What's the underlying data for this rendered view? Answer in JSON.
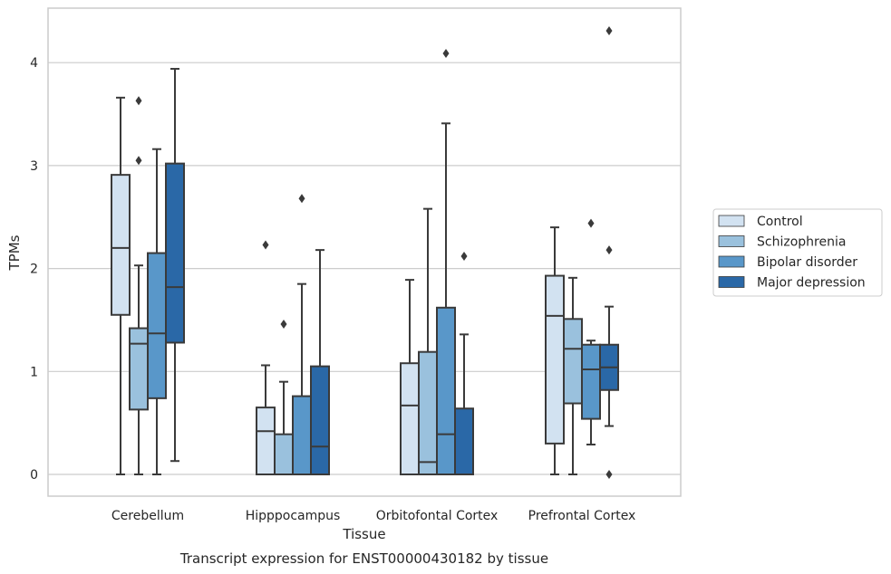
{
  "caption": "Transcript expression for ENST00000430182 by tissue",
  "chart_data": {
    "type": "box",
    "xlabel": "Tissue",
    "ylabel": "TPMs",
    "ylim": [
      -0.2,
      4.55
    ],
    "yticks": [
      0,
      1,
      2,
      3,
      4
    ],
    "grid": "horizontal",
    "legend_position": "right",
    "categories": [
      "Cerebellum",
      "Hipppocampus",
      "Orbitofontal Cortex",
      "Prefrontal Cortex"
    ],
    "series": [
      {
        "name": "Control",
        "color": "#d2e2f1",
        "boxes": [
          {
            "whislo": 0.0,
            "q1": 1.55,
            "med": 2.2,
            "q3": 2.91,
            "whishi": 3.66,
            "fliers": []
          },
          {
            "whislo": 0.0,
            "q1": 0.0,
            "med": 0.42,
            "q3": 0.65,
            "whishi": 1.06,
            "fliers": [
              2.23
            ]
          },
          {
            "whislo": 0.0,
            "q1": 0.0,
            "med": 0.67,
            "q3": 1.08,
            "whishi": 1.89,
            "fliers": []
          },
          {
            "whislo": 0.0,
            "q1": 0.3,
            "med": 1.54,
            "q3": 1.93,
            "whishi": 2.4,
            "fliers": []
          }
        ]
      },
      {
        "name": "Schizophrenia",
        "color": "#9ac1dd",
        "boxes": [
          {
            "whislo": 0.0,
            "q1": 0.63,
            "med": 1.27,
            "q3": 1.42,
            "whishi": 2.03,
            "fliers": [
              3.05,
              3.63
            ]
          },
          {
            "whislo": 0.0,
            "q1": 0.0,
            "med": 0.0,
            "q3": 0.39,
            "whishi": 0.9,
            "fliers": [
              1.46
            ]
          },
          {
            "whislo": 0.0,
            "q1": 0.0,
            "med": 0.12,
            "q3": 1.19,
            "whishi": 2.58,
            "fliers": []
          },
          {
            "whislo": 0.0,
            "q1": 0.69,
            "med": 1.22,
            "q3": 1.51,
            "whishi": 1.91,
            "fliers": []
          }
        ]
      },
      {
        "name": "Bipolar disorder",
        "color": "#5997c9",
        "boxes": [
          {
            "whislo": 0.0,
            "q1": 0.74,
            "med": 1.37,
            "q3": 2.15,
            "whishi": 3.16,
            "fliers": []
          },
          {
            "whislo": 0.0,
            "q1": 0.0,
            "med": 0.0,
            "q3": 0.76,
            "whishi": 1.85,
            "fliers": [
              2.68
            ]
          },
          {
            "whislo": 0.0,
            "q1": 0.0,
            "med": 0.39,
            "q3": 1.62,
            "whishi": 3.41,
            "fliers": [
              4.09
            ]
          },
          {
            "whislo": 0.29,
            "q1": 0.54,
            "med": 1.02,
            "q3": 1.26,
            "whishi": 1.3,
            "fliers": [
              2.44
            ]
          }
        ]
      },
      {
        "name": "Major depression",
        "color": "#2a68a7",
        "boxes": [
          {
            "whislo": 0.13,
            "q1": 1.28,
            "med": 1.82,
            "q3": 3.02,
            "whishi": 3.94,
            "fliers": []
          },
          {
            "whislo": 0.0,
            "q1": 0.0,
            "med": 0.27,
            "q3": 1.05,
            "whishi": 2.18,
            "fliers": []
          },
          {
            "whislo": 0.0,
            "q1": 0.0,
            "med": 0.0,
            "q3": 0.64,
            "whishi": 1.36,
            "fliers": [
              2.12
            ]
          },
          {
            "whislo": 0.47,
            "q1": 0.82,
            "med": 1.04,
            "q3": 1.26,
            "whishi": 1.63,
            "fliers": [
              0.0,
              2.18,
              4.31
            ]
          }
        ]
      }
    ]
  }
}
